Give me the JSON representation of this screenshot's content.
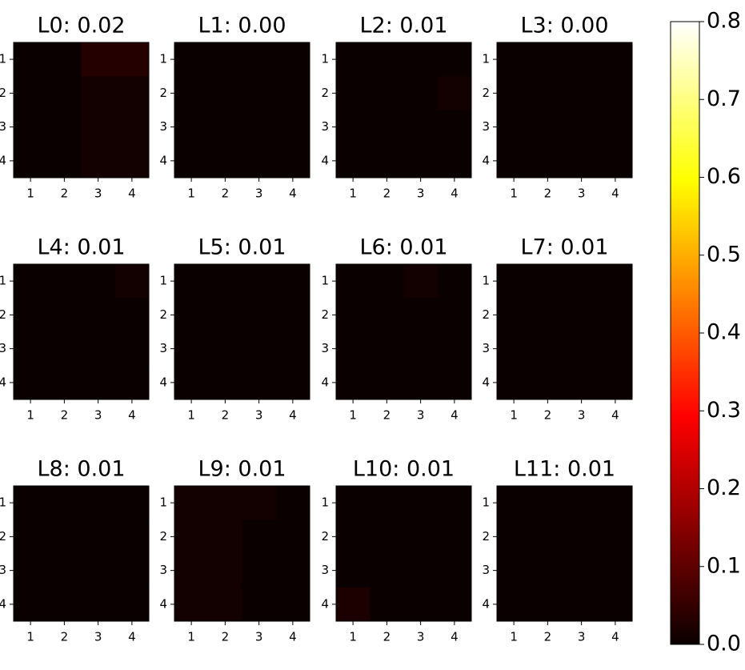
{
  "chart_data": {
    "type": "heatmap",
    "colormap": "hot",
    "grid": false,
    "panels": [
      {
        "title": "L0: 0.02",
        "x_ticks": [
          "1",
          "2",
          "3",
          "4"
        ],
        "y_ticks": [
          "1",
          "2",
          "3",
          "4"
        ],
        "values": [
          [
            0.0,
            0.0,
            0.03,
            0.03
          ],
          [
            0.0,
            0.0,
            0.01,
            0.01
          ],
          [
            0.0,
            0.0,
            0.01,
            0.01
          ],
          [
            0.0,
            0.0,
            0.01,
            0.01
          ]
        ]
      },
      {
        "title": "L1: 0.00",
        "x_ticks": [
          "1",
          "2",
          "3",
          "4"
        ],
        "y_ticks": [
          "1",
          "2",
          "3",
          "4"
        ],
        "values": [
          [
            0.0,
            0.0,
            0.0,
            0.0
          ],
          [
            0.0,
            0.0,
            0.0,
            0.0
          ],
          [
            0.0,
            0.0,
            0.0,
            0.0
          ],
          [
            0.0,
            0.0,
            0.0,
            0.0
          ]
        ]
      },
      {
        "title": "L2: 0.01",
        "x_ticks": [
          "1",
          "2",
          "3",
          "4"
        ],
        "y_ticks": [
          "1",
          "2",
          "3",
          "4"
        ],
        "values": [
          [
            0.0,
            0.0,
            0.0,
            0.0
          ],
          [
            0.0,
            0.0,
            0.0,
            0.01
          ],
          [
            0.0,
            0.0,
            0.0,
            0.0
          ],
          [
            0.0,
            0.0,
            0.0,
            0.0
          ]
        ]
      },
      {
        "title": "L3: 0.00",
        "x_ticks": [
          "1",
          "2",
          "3",
          "4"
        ],
        "y_ticks": [
          "1",
          "2",
          "3",
          "4"
        ],
        "values": [
          [
            0.0,
            0.0,
            0.0,
            0.0
          ],
          [
            0.0,
            0.0,
            0.0,
            0.0
          ],
          [
            0.0,
            0.0,
            0.0,
            0.0
          ],
          [
            0.0,
            0.0,
            0.0,
            0.0
          ]
        ]
      },
      {
        "title": "L4: 0.01",
        "x_ticks": [
          "1",
          "2",
          "3",
          "4"
        ],
        "y_ticks": [
          "1",
          "2",
          "3",
          "4"
        ],
        "values": [
          [
            0.0,
            0.0,
            0.0,
            0.01
          ],
          [
            0.0,
            0.0,
            0.0,
            0.0
          ],
          [
            0.0,
            0.0,
            0.0,
            0.0
          ],
          [
            0.0,
            0.0,
            0.0,
            0.0
          ]
        ]
      },
      {
        "title": "L5: 0.01",
        "x_ticks": [
          "1",
          "2",
          "3",
          "4"
        ],
        "y_ticks": [
          "1",
          "2",
          "3",
          "4"
        ],
        "values": [
          [
            0.0,
            0.0,
            0.0,
            0.0
          ],
          [
            0.0,
            0.0,
            0.0,
            0.0
          ],
          [
            0.0,
            0.0,
            0.0,
            0.0
          ],
          [
            0.0,
            0.0,
            0.0,
            0.0
          ]
        ]
      },
      {
        "title": "L6: 0.01",
        "x_ticks": [
          "1",
          "2",
          "3",
          "4"
        ],
        "y_ticks": [
          "1",
          "2",
          "3",
          "4"
        ],
        "values": [
          [
            0.0,
            0.0,
            0.01,
            0.0
          ],
          [
            0.0,
            0.0,
            0.0,
            0.0
          ],
          [
            0.0,
            0.0,
            0.0,
            0.0
          ],
          [
            0.0,
            0.0,
            0.0,
            0.0
          ]
        ]
      },
      {
        "title": "L7: 0.01",
        "x_ticks": [
          "1",
          "2",
          "3",
          "4"
        ],
        "y_ticks": [
          "1",
          "2",
          "3",
          "4"
        ],
        "values": [
          [
            0.0,
            0.0,
            0.0,
            0.0
          ],
          [
            0.0,
            0.0,
            0.0,
            0.0
          ],
          [
            0.0,
            0.0,
            0.0,
            0.0
          ],
          [
            0.0,
            0.0,
            0.0,
            0.0
          ]
        ]
      },
      {
        "title": "L8: 0.01",
        "x_ticks": [
          "1",
          "2",
          "3",
          "4"
        ],
        "y_ticks": [
          "1",
          "2",
          "3",
          "4"
        ],
        "values": [
          [
            0.0,
            0.0,
            0.0,
            0.0
          ],
          [
            0.0,
            0.0,
            0.0,
            0.0
          ],
          [
            0.0,
            0.0,
            0.0,
            0.0
          ],
          [
            0.0,
            0.0,
            0.0,
            0.0
          ]
        ]
      },
      {
        "title": "L9: 0.01",
        "x_ticks": [
          "1",
          "2",
          "3",
          "4"
        ],
        "y_ticks": [
          "1",
          "2",
          "3",
          "4"
        ],
        "values": [
          [
            0.01,
            0.01,
            0.01,
            0.0
          ],
          [
            0.01,
            0.01,
            0.0,
            0.0
          ],
          [
            0.01,
            0.01,
            0.0,
            0.0
          ],
          [
            0.01,
            0.01,
            0.0,
            0.0
          ]
        ]
      },
      {
        "title": "L10: 0.01",
        "x_ticks": [
          "1",
          "2",
          "3",
          "4"
        ],
        "y_ticks": [
          "1",
          "2",
          "3",
          "4"
        ],
        "values": [
          [
            0.0,
            0.0,
            0.0,
            0.0
          ],
          [
            0.0,
            0.0,
            0.0,
            0.0
          ],
          [
            0.0,
            0.0,
            0.0,
            0.0
          ],
          [
            0.02,
            0.0,
            0.0,
            0.0
          ]
        ]
      },
      {
        "title": "L11: 0.01",
        "x_ticks": [
          "1",
          "2",
          "3",
          "4"
        ],
        "y_ticks": [
          "1",
          "2",
          "3",
          "4"
        ],
        "values": [
          [
            0.0,
            0.0,
            0.0,
            0.0
          ],
          [
            0.0,
            0.0,
            0.0,
            0.0
          ],
          [
            0.0,
            0.0,
            0.0,
            0.0
          ],
          [
            0.0,
            0.0,
            0.0,
            0.0
          ]
        ]
      }
    ],
    "colorbar": {
      "range": [
        0.0,
        0.8
      ],
      "tick_values": [
        0.0,
        0.1,
        0.2,
        0.3,
        0.4,
        0.5,
        0.6,
        0.7,
        0.8
      ],
      "tick_labels": [
        "0.0",
        "0.1",
        "0.2",
        "0.3",
        "0.4",
        "0.5",
        "0.6",
        "0.7",
        "0.8"
      ]
    }
  }
}
